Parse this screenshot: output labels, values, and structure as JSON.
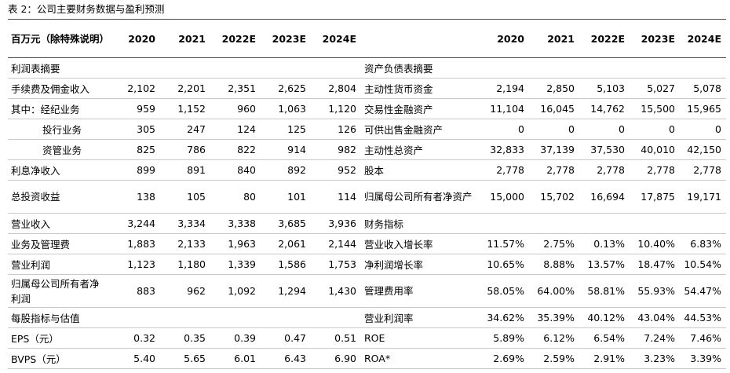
{
  "caption": "表 2：公司主要财务数据与盈利预测",
  "header": {
    "left_label": "百万元（除特殊说明）",
    "years": [
      "2020",
      "2021",
      "2022E",
      "2023E",
      "2024E"
    ]
  },
  "rows": [
    {
      "l": "利润表摘要",
      "lv": [
        "",
        "",
        "",
        "",
        ""
      ],
      "r": "资产负债表摘要",
      "rv": [
        "",
        "",
        "",
        "",
        ""
      ]
    },
    {
      "l": "手续费及佣金收入",
      "lv": [
        "2,102",
        "2,201",
        "2,351",
        "2,625",
        "2,804"
      ],
      "r": "主动性货币资金",
      "rv": [
        "2,194",
        "2,850",
        "5,103",
        "5,027",
        "5,078"
      ]
    },
    {
      "l": "其中：经纪业务",
      "lv": [
        "959",
        "1,152",
        "960",
        "1,063",
        "1,120"
      ],
      "r": "交易性金融资产",
      "rv": [
        "11,104",
        "16,045",
        "14,762",
        "15,500",
        "15,965"
      ]
    },
    {
      "l": "投行业务",
      "lv": [
        "305",
        "247",
        "124",
        "125",
        "126"
      ],
      "r": "可供出售金融资产",
      "rv": [
        "0",
        "0",
        "0",
        "0",
        "0"
      ]
    },
    {
      "l": "资管业务",
      "lv": [
        "825",
        "786",
        "822",
        "914",
        "982"
      ],
      "r": "主动性总资产",
      "rv": [
        "32,833",
        "37,139",
        "37,530",
        "40,010",
        "42,150"
      ]
    },
    {
      "l": "利息净收入",
      "lv": [
        "899",
        "891",
        "840",
        "892",
        "952"
      ],
      "r": "股本",
      "rv": [
        "2,778",
        "2,778",
        "2,778",
        "2,778",
        "2,778"
      ]
    },
    {
      "l": "总投资收益",
      "lv": [
        "138",
        "105",
        "80",
        "101",
        "114"
      ],
      "r": "归属母公司所有者净资产",
      "rv": [
        "15,000",
        "15,702",
        "16,694",
        "17,875",
        "19,171"
      ]
    },
    {
      "l": "营业收入",
      "lv": [
        "3,244",
        "3,334",
        "3,338",
        "3,685",
        "3,936"
      ],
      "r": "财务指标",
      "rv": [
        "",
        "",
        "",
        "",
        ""
      ]
    },
    {
      "l": "业务及管理费",
      "lv": [
        "1,883",
        "2,133",
        "1,963",
        "2,061",
        "2,144"
      ],
      "r": "营业收入增长率",
      "rv": [
        "11.57%",
        "2.75%",
        "0.13%",
        "10.40%",
        "6.83%"
      ]
    },
    {
      "l": "营业利润",
      "lv": [
        "1,123",
        "1,180",
        "1,339",
        "1,586",
        "1,753"
      ],
      "r": "净利润增长率",
      "rv": [
        "10.65%",
        "8.88%",
        "13.57%",
        "18.47%",
        "10.54%"
      ]
    },
    {
      "l": "归属母公司所有者净利润",
      "lv": [
        "883",
        "962",
        "1,092",
        "1,294",
        "1,430"
      ],
      "r": "管理费用率",
      "rv": [
        "58.05%",
        "64.00%",
        "58.81%",
        "55.93%",
        "54.47%"
      ]
    },
    {
      "l": "每股指标与估值",
      "lv": [
        "",
        "",
        "",
        "",
        ""
      ],
      "r": "营业利润率",
      "rv": [
        "34.62%",
        "35.39%",
        "40.12%",
        "43.04%",
        "44.53%"
      ]
    },
    {
      "l": "EPS（元）",
      "lv": [
        "0.32",
        "0.35",
        "0.39",
        "0.47",
        "0.51"
      ],
      "r": "ROE",
      "rv": [
        "5.89%",
        "6.12%",
        "6.54%",
        "7.24%",
        "7.46%"
      ]
    },
    {
      "l": "BVPS（元）",
      "lv": [
        "5.40",
        "5.65",
        "6.01",
        "6.43",
        "6.90"
      ],
      "r": "ROA*",
      "rv": [
        "2.69%",
        "2.59%",
        "2.91%",
        "3.23%",
        "3.39%"
      ]
    }
  ]
}
